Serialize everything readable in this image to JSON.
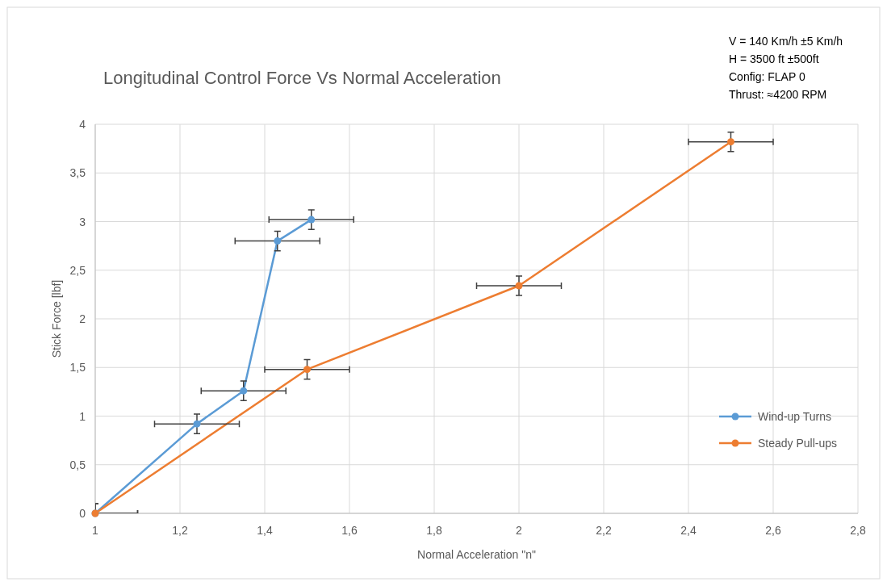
{
  "chart_data": {
    "type": "line",
    "title": "Longitudinal Control Force Vs Normal Acceleration",
    "xlabel": "Normal Acceleration \"n\"",
    "ylabel": "Stick Force [lbf]",
    "annotations": [
      "V = 140 Km/h ±5 Km/h",
      "H = 3500 ft ±500ft",
      "Config: FLAP 0",
      "Thrust: ≈4200 RPM"
    ],
    "series": [
      {
        "name": "Wind-up Turns",
        "color": "#5b9bd5",
        "x": [
          1,
          1.24,
          1.35,
          1.43,
          1.51
        ],
        "values": [
          0,
          0.92,
          1.26,
          2.8,
          3.02
        ],
        "errors": [
          0.1,
          0.1,
          0.1,
          0.1,
          0.1
        ],
        "xerrors": [
          0.1,
          0.1,
          0.1,
          0.1,
          0.1
        ]
      },
      {
        "name": "Steady Pull-ups",
        "color": "#ed7d31",
        "x": [
          1,
          1.5,
          2,
          2.5
        ],
        "values": [
          0,
          1.48,
          2.34,
          3.82
        ],
        "errors": [
          0.1,
          0.1,
          0.1,
          0.1
        ],
        "xerrors": [
          0.1,
          0.1,
          0.1,
          0.1
        ]
      }
    ],
    "xlim": [
      1,
      2.8
    ],
    "xticks": [
      1,
      {
        "value": 1.2,
        "label": "1,2"
      },
      {
        "value": 1.4,
        "label": "1,4"
      },
      {
        "value": 1.6,
        "label": "1,6"
      },
      {
        "value": 1.8,
        "label": "1,8"
      },
      2,
      {
        "value": 2.2,
        "label": "2,2"
      },
      {
        "value": 2.4,
        "label": "2,4"
      },
      {
        "value": 2.6,
        "label": "2,6"
      },
      {
        "value": 2.8,
        "label": "2,8"
      }
    ],
    "ylim": [
      0,
      4
    ],
    "yticks": [
      0,
      {
        "value": 0.5,
        "label": "0,5"
      },
      1,
      {
        "value": 1.5,
        "label": "1,5"
      },
      2,
      {
        "value": 2.5,
        "label": "2,5"
      },
      3,
      {
        "value": 3.5,
        "label": "3,5"
      },
      4
    ],
    "grid": true,
    "legend": "bottom right",
    "marker": "circle",
    "line_style": "solid"
  }
}
